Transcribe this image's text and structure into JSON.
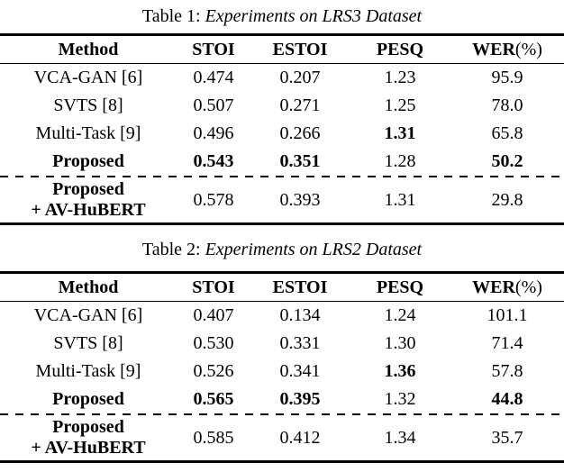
{
  "tables": [
    {
      "caption": {
        "label": "Table 1:",
        "title": "Experiments on LRS3 Dataset"
      },
      "header": {
        "method": "Method",
        "stoi": "STOI",
        "estoi": "ESTOI",
        "pesq": "PESQ",
        "wer": "WER",
        "wer_unit": "(%)"
      },
      "rows": [
        {
          "method": "VCA-GAN [6]",
          "stoi": "0.474",
          "estoi": "0.207",
          "pesq": "1.23",
          "wer": "95.9"
        },
        {
          "method": "SVTS [8]",
          "stoi": "0.507",
          "estoi": "0.271",
          "pesq": "1.25",
          "wer": "78.0"
        },
        {
          "method": "Multi-Task [9]",
          "stoi": "0.496",
          "estoi": "0.266",
          "pesq": "1.31",
          "wer": "65.8"
        },
        {
          "method": "Proposed",
          "stoi": "0.543",
          "estoi": "0.351",
          "pesq": "1.28",
          "wer": "50.2"
        },
        {
          "method_line1": "Proposed",
          "method_line2": "+ AV-HuBERT",
          "stoi": "0.578",
          "estoi": "0.393",
          "pesq": "1.31",
          "wer": "29.8"
        }
      ]
    },
    {
      "caption": {
        "label": "Table 2:",
        "title": "Experiments on LRS2 Dataset"
      },
      "header": {
        "method": "Method",
        "stoi": "STOI",
        "estoi": "ESTOI",
        "pesq": "PESQ",
        "wer": "WER",
        "wer_unit": "(%)"
      },
      "rows": [
        {
          "method": "VCA-GAN [6]",
          "stoi": "0.407",
          "estoi": "0.134",
          "pesq": "1.24",
          "wer": "101.1"
        },
        {
          "method": "SVTS [8]",
          "stoi": "0.530",
          "estoi": "0.331",
          "pesq": "1.30",
          "wer": "71.4"
        },
        {
          "method": "Multi-Task [9]",
          "stoi": "0.526",
          "estoi": "0.341",
          "pesq": "1.36",
          "wer": "57.8"
        },
        {
          "method": "Proposed",
          "stoi": "0.565",
          "estoi": "0.395",
          "pesq": "1.32",
          "wer": "44.8"
        },
        {
          "method_line1": "Proposed",
          "method_line2": "+ AV-HuBERT",
          "stoi": "0.585",
          "estoi": "0.412",
          "pesq": "1.34",
          "wer": "35.7"
        }
      ]
    }
  ],
  "chart_data": [
    {
      "type": "table",
      "title": "Table 1: Experiments on LRS3 Dataset",
      "columns": [
        "Method",
        "STOI",
        "ESTOI",
        "PESQ",
        "WER(%)"
      ],
      "rows": [
        [
          "VCA-GAN [6]",
          0.474,
          0.207,
          1.23,
          95.9
        ],
        [
          "SVTS [8]",
          0.507,
          0.271,
          1.25,
          78.0
        ],
        [
          "Multi-Task [9]",
          0.496,
          0.266,
          1.31,
          65.8
        ],
        [
          "Proposed",
          0.543,
          0.351,
          1.28,
          50.2
        ],
        [
          "Proposed + AV-HuBERT",
          0.578,
          0.393,
          1.31,
          29.8
        ]
      ]
    },
    {
      "type": "table",
      "title": "Table 2: Experiments on LRS2 Dataset",
      "columns": [
        "Method",
        "STOI",
        "ESTOI",
        "PESQ",
        "WER(%)"
      ],
      "rows": [
        [
          "VCA-GAN [6]",
          0.407,
          0.134,
          1.24,
          101.1
        ],
        [
          "SVTS [8]",
          0.53,
          0.331,
          1.3,
          71.4
        ],
        [
          "Multi-Task [9]",
          0.526,
          0.341,
          1.36,
          57.8
        ],
        [
          "Proposed",
          0.565,
          0.395,
          1.32,
          44.8
        ],
        [
          "Proposed + AV-HuBERT",
          0.585,
          0.412,
          1.34,
          35.7
        ]
      ]
    }
  ]
}
